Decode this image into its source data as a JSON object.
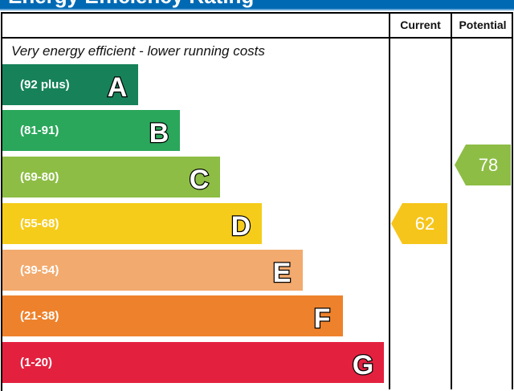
{
  "header": {
    "title": "Energy Efficiency Rating"
  },
  "table": {
    "col_current": "Current",
    "col_potential": "Potential",
    "top_note": "Very energy efficient - lower running costs"
  },
  "chart_data": {
    "type": "bar",
    "categories": [
      "A",
      "B",
      "C",
      "D",
      "E",
      "F",
      "G"
    ],
    "ranges": [
      "(92 plus)",
      "(81-91)",
      "(69-80)",
      "(55-68)",
      "(39-54)",
      "(21-38)",
      "(1-20)"
    ],
    "colors": [
      "#17825a",
      "#2aa75b",
      "#8dbd45",
      "#f6cc1b",
      "#f2aa6e",
      "#ee822c",
      "#e3213f"
    ],
    "current": {
      "value": 62,
      "band": "D",
      "color": "#f6c51b"
    },
    "potential": {
      "value": 78,
      "band": "C",
      "color": "#8dbd45"
    }
  }
}
